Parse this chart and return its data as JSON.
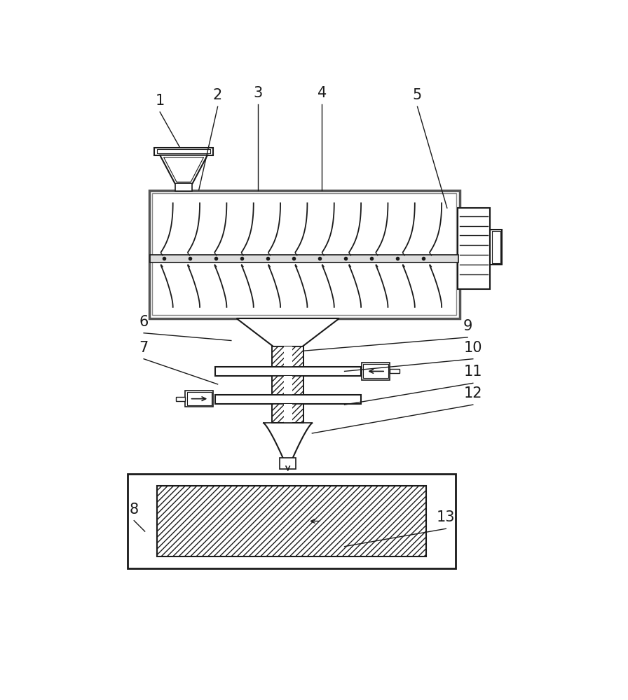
{
  "bg_color": "#ffffff",
  "line_color": "#1a1a1a",
  "label_color": "#1a1a1a",
  "box_color": "#3a7a3a",
  "figsize": [
    8.96,
    10.0
  ],
  "dpi": 100
}
